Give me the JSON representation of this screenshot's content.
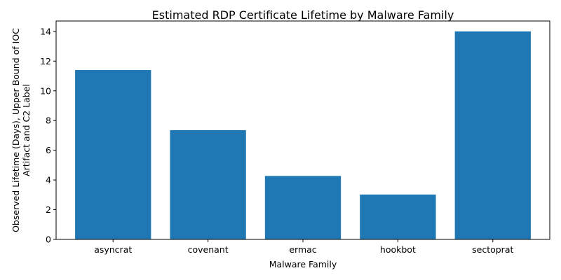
{
  "chart_data": {
    "type": "bar",
    "title": "Estimated RDP Certificate Lifetime by Malware Family",
    "xlabel": "Malware Family",
    "ylabel_lines": [
      "Observed Lifetime (Days), Upper Bound of IOC",
      "Artifact and C2 Label"
    ],
    "categories": [
      "asyncrat",
      "covenant",
      "ermac",
      "hookbot",
      "sectoprat"
    ],
    "values": [
      11.4,
      7.35,
      4.27,
      3.02,
      14.0
    ],
    "ylim": [
      0,
      14.7
    ],
    "yticks": [
      0,
      2,
      4,
      6,
      8,
      10,
      12,
      14
    ],
    "grid": false,
    "bar_color": "#1f77b4"
  }
}
